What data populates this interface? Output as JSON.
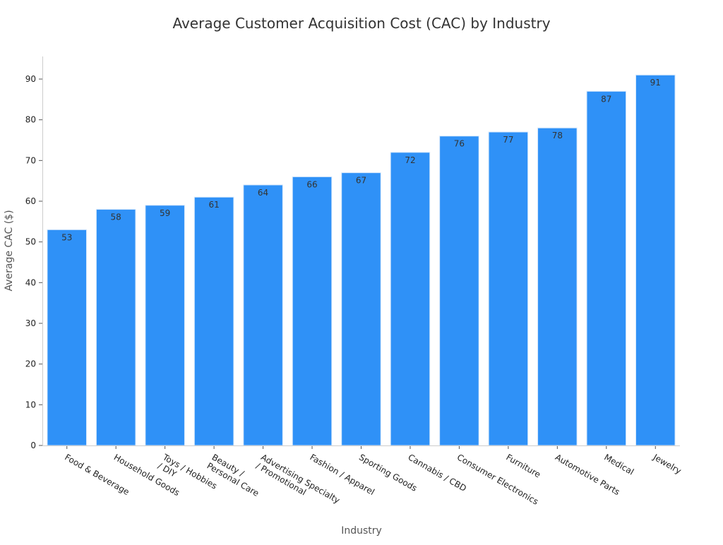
{
  "chart_data": {
    "type": "bar",
    "title": "Average Customer Acquisition Cost (CAC) by Industry",
    "xlabel": "Industry",
    "ylabel": "Average CAC ($)",
    "categories": [
      "Food & Beverage",
      "Household Goods",
      "Toys / Hobbies\n/ DIY",
      "Beauty /\nPersonal Care",
      "Advertising Specialty\n/ Promotional",
      "Fashion / Apparel",
      "Sporting Goods",
      "Cannabis / CBD",
      "Consumer Electronics",
      "Furniture",
      "Automotive Parts",
      "Medical",
      "Jewelry"
    ],
    "values": [
      53,
      58,
      59,
      61,
      64,
      66,
      67,
      72,
      76,
      77,
      78,
      87,
      91
    ],
    "ylim": [
      0,
      95.55
    ],
    "yticks": [
      0,
      10,
      20,
      30,
      40,
      50,
      60,
      70,
      80,
      90
    ],
    "grid": false,
    "data_labels": true,
    "bar_color": "#2f91f7",
    "bar_edge_color": "#d6e8fb"
  }
}
